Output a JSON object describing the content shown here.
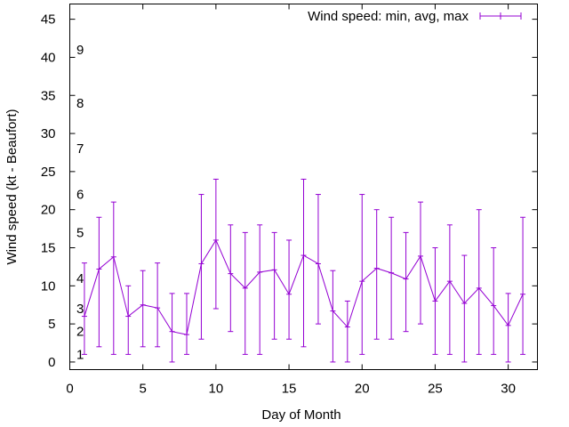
{
  "chart_data": {
    "type": "line",
    "title": "",
    "xlabel": "Day of Month",
    "ylabel": "Wind speed (kt - Beaufort)",
    "xlim": [
      0,
      32
    ],
    "ylim": [
      -1,
      47
    ],
    "xticks": [
      0,
      5,
      10,
      15,
      20,
      25,
      30
    ],
    "yticks": [
      0,
      5,
      10,
      15,
      20,
      25,
      30,
      35,
      40,
      45
    ],
    "grid": false,
    "legend_position": "top-right",
    "series": [
      {
        "name": "Wind speed: min, avg, max",
        "color": "#9400d3",
        "x": [
          1,
          2,
          3,
          4,
          5,
          6,
          7,
          8,
          9,
          10,
          11,
          12,
          13,
          14,
          15,
          16,
          17,
          18,
          19,
          20,
          21,
          22,
          23,
          24,
          25,
          26,
          27,
          28,
          29,
          30,
          31
        ],
        "avg": [
          6,
          12.2,
          13.8,
          6,
          7.5,
          7.1,
          4,
          3.6,
          12.9,
          16,
          11.6,
          9.7,
          11.8,
          12.1,
          8.9,
          14,
          12.9,
          6.7,
          4.6,
          10.6,
          12.3,
          11.7,
          10.9,
          13.9,
          8,
          10.6,
          7.7,
          9.7,
          7.4,
          4.8,
          8.9
        ],
        "min": [
          1,
          2,
          1,
          1,
          2,
          2,
          0,
          1,
          3,
          7,
          4,
          1,
          1,
          3,
          3,
          2,
          5,
          0,
          0,
          1,
          3,
          3,
          4,
          5,
          1,
          1,
          0,
          1,
          1,
          0,
          1
        ],
        "max": [
          13,
          19,
          21,
          10,
          12,
          13,
          9,
          9,
          22,
          24,
          18,
          17,
          18,
          17,
          16,
          24,
          22,
          12,
          8,
          22,
          20,
          19,
          17,
          21,
          15,
          18,
          14,
          20,
          15,
          9,
          19
        ]
      }
    ],
    "beaufort_labels": [
      {
        "label": "1",
        "value": 1
      },
      {
        "label": "2",
        "value": 4
      },
      {
        "label": "3",
        "value": 7
      },
      {
        "label": "4",
        "value": 11
      },
      {
        "label": "5",
        "value": 17
      },
      {
        "label": "6",
        "value": 22
      },
      {
        "label": "7",
        "value": 28
      },
      {
        "label": "8",
        "value": 34
      },
      {
        "label": "9",
        "value": 41
      }
    ]
  }
}
